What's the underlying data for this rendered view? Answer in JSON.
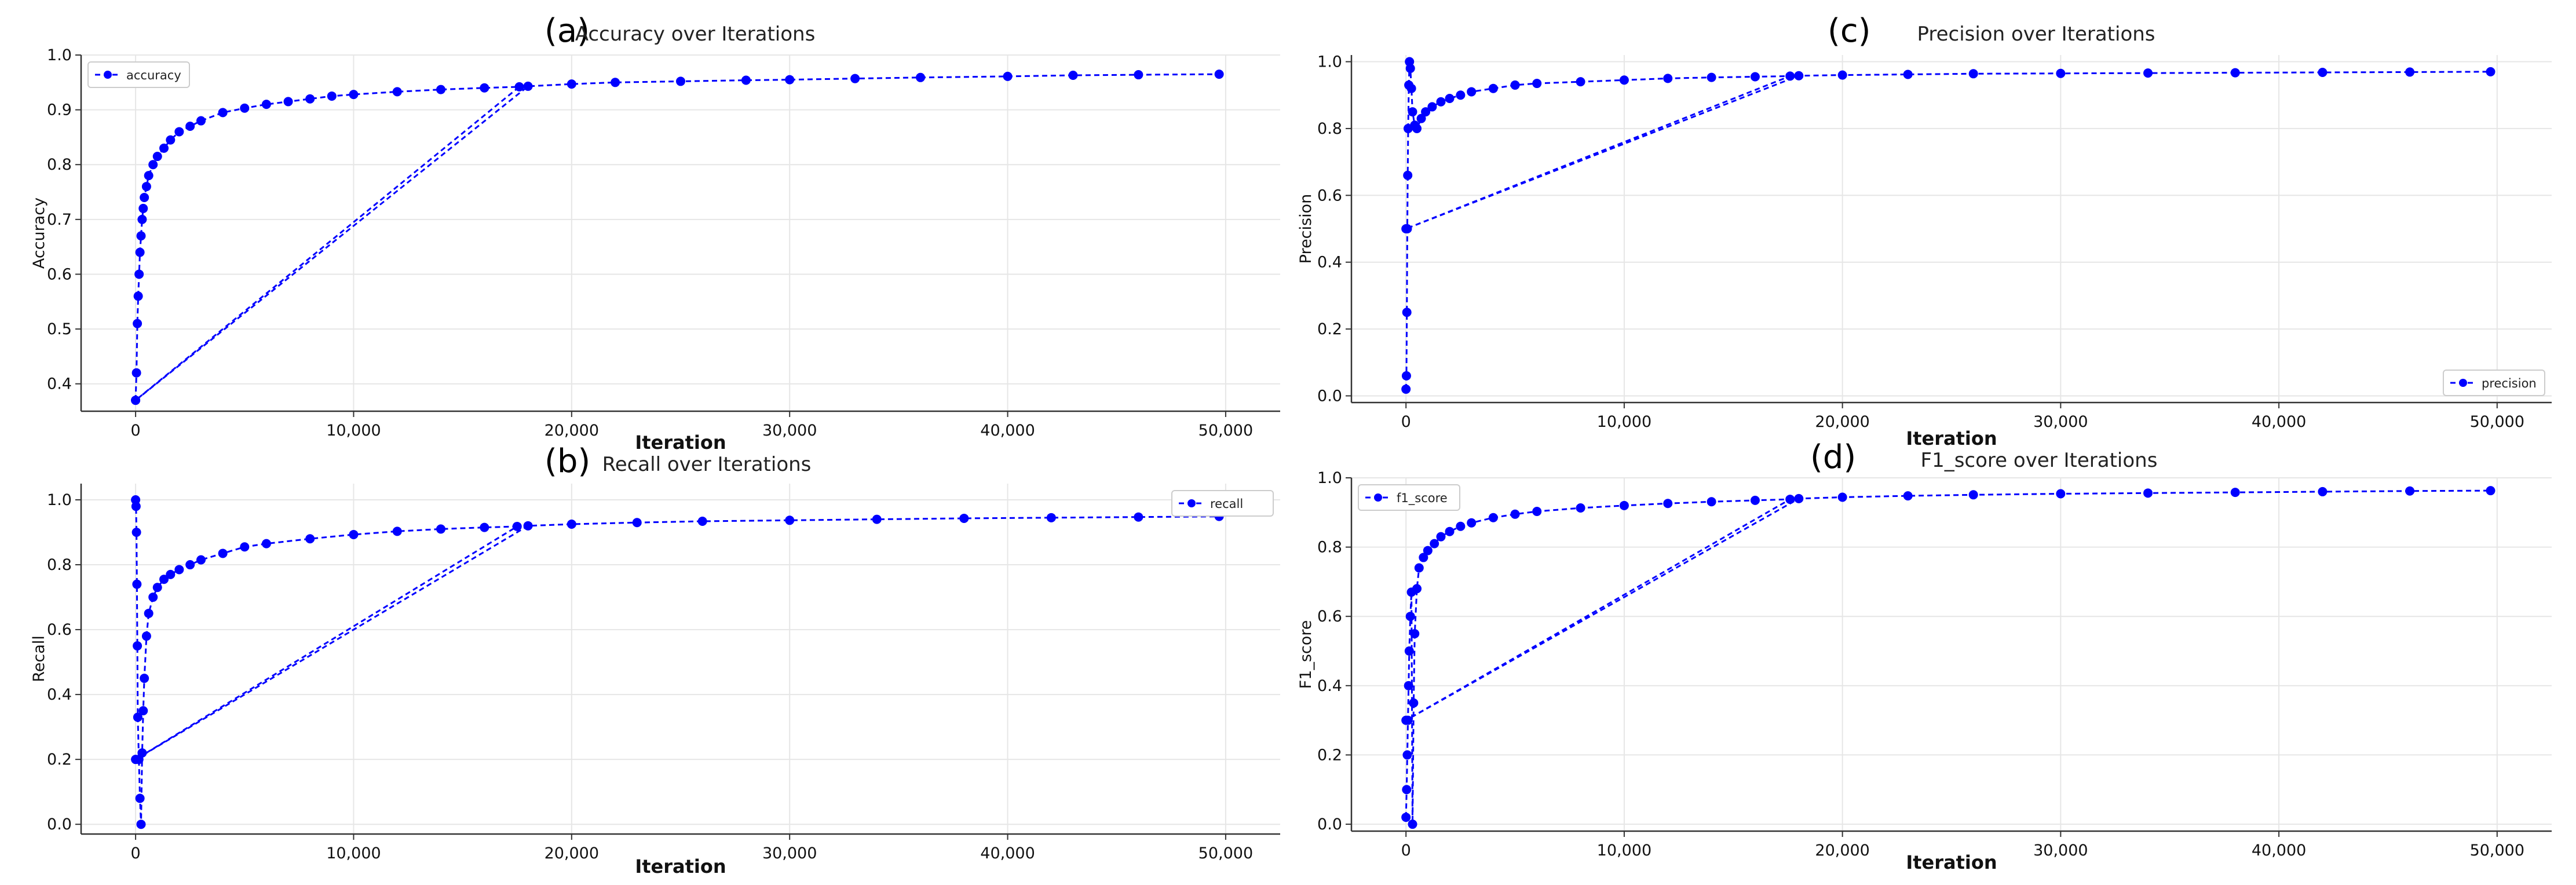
{
  "chart_data": [
    {
      "id": "accuracy",
      "type": "line",
      "panel_label": "(a)",
      "title": "Accuracy over Iterations",
      "xlabel": "Iteration",
      "ylabel": "Accuracy",
      "xlim": [
        -2500,
        52500
      ],
      "ylim": [
        0.35,
        1.0
      ],
      "xticks": [
        0,
        10000,
        20000,
        30000,
        40000,
        50000
      ],
      "xtick_labels": [
        "0",
        "10,000",
        "20,000",
        "30,000",
        "40,000",
        "50,000"
      ],
      "yticks": [
        0.4,
        0.5,
        0.6,
        0.7,
        0.8,
        0.9,
        1.0
      ],
      "ytick_labels": [
        "0.4",
        "0.5",
        "0.6",
        "0.7",
        "0.8",
        "0.9",
        "1.0"
      ],
      "grid": true,
      "legend_position": "upper-left",
      "series": [
        {
          "name": "accuracy",
          "color": "#0000ff",
          "line_style": "dashed",
          "marker": "circle",
          "x": [
            0,
            40,
            80,
            120,
            160,
            200,
            250,
            300,
            350,
            400,
            500,
            600,
            800,
            1000,
            1300,
            1600,
            2000,
            2500,
            3000,
            4000,
            5000,
            6000,
            7000,
            8000,
            9000,
            10000,
            12000,
            14000,
            16000,
            17600,
            0,
            18000,
            20000,
            22000,
            25000,
            28000,
            30000,
            33000,
            36000,
            40000,
            43000,
            46000,
            49700
          ],
          "y": [
            0.37,
            0.42,
            0.51,
            0.56,
            0.6,
            0.64,
            0.67,
            0.7,
            0.72,
            0.74,
            0.76,
            0.78,
            0.8,
            0.815,
            0.83,
            0.845,
            0.86,
            0.87,
            0.88,
            0.895,
            0.903,
            0.91,
            0.915,
            0.92,
            0.925,
            0.928,
            0.933,
            0.937,
            0.94,
            0.942,
            0.37,
            0.943,
            0.947,
            0.95,
            0.952,
            0.954,
            0.955,
            0.957,
            0.959,
            0.961,
            0.963,
            0.964,
            0.965
          ]
        }
      ]
    },
    {
      "id": "recall",
      "type": "line",
      "panel_label": "(b)",
      "title": "Recall over Iterations",
      "xlabel": "Iteration",
      "ylabel": "Recall",
      "xlim": [
        -2500,
        52500
      ],
      "ylim": [
        -0.03,
        1.05
      ],
      "xticks": [
        0,
        10000,
        20000,
        30000,
        40000,
        50000
      ],
      "xtick_labels": [
        "0",
        "10,000",
        "20,000",
        "30,000",
        "40,000",
        "50,000"
      ],
      "yticks": [
        0.0,
        0.2,
        0.4,
        0.6,
        0.8,
        1.0
      ],
      "ytick_labels": [
        "0.0",
        "0.2",
        "0.4",
        "0.6",
        "0.8",
        "1.0"
      ],
      "grid": true,
      "legend_position": "upper-right",
      "series": [
        {
          "name": "recall",
          "color": "#0000ff",
          "line_style": "dashed",
          "marker": "circle",
          "x": [
            0,
            20,
            40,
            60,
            80,
            100,
            150,
            200,
            250,
            300,
            350,
            400,
            500,
            600,
            800,
            1000,
            1300,
            1600,
            2000,
            2500,
            3000,
            4000,
            5000,
            6000,
            8000,
            10000,
            12000,
            14000,
            16000,
            17500,
            0,
            18000,
            20000,
            23000,
            26000,
            30000,
            34000,
            38000,
            42000,
            46000,
            49700
          ],
          "y": [
            1.0,
            0.98,
            0.9,
            0.74,
            0.55,
            0.33,
            0.2,
            0.08,
            0.0,
            0.22,
            0.35,
            0.45,
            0.58,
            0.65,
            0.7,
            0.73,
            0.755,
            0.77,
            0.785,
            0.8,
            0.815,
            0.835,
            0.855,
            0.865,
            0.88,
            0.893,
            0.903,
            0.91,
            0.915,
            0.918,
            0.2,
            0.92,
            0.925,
            0.93,
            0.934,
            0.937,
            0.94,
            0.943,
            0.945,
            0.947,
            0.949
          ]
        }
      ]
    },
    {
      "id": "precision",
      "type": "line",
      "panel_label": "(c)",
      "title": "Precision over Iterations",
      "xlabel": "Iteration",
      "ylabel": "Precision",
      "xlim": [
        -2500,
        52500
      ],
      "ylim": [
        -0.02,
        1.02
      ],
      "xticks": [
        0,
        10000,
        20000,
        30000,
        40000,
        50000
      ],
      "xtick_labels": [
        "0",
        "10,000",
        "20,000",
        "30,000",
        "40,000",
        "50,000"
      ],
      "yticks": [
        0.0,
        0.2,
        0.4,
        0.6,
        0.8,
        1.0
      ],
      "ytick_labels": [
        "0.0",
        "0.2",
        "0.4",
        "0.6",
        "0.8",
        "1.0"
      ],
      "grid": true,
      "legend_position": "lower-right",
      "series": [
        {
          "name": "precision",
          "color": "#0000ff",
          "line_style": "dashed",
          "marker": "circle",
          "x": [
            0,
            20,
            40,
            60,
            80,
            100,
            130,
            160,
            200,
            250,
            300,
            400,
            500,
            700,
            900,
            1200,
            1600,
            2000,
            2500,
            3000,
            4000,
            5000,
            6000,
            8000,
            10000,
            12000,
            14000,
            16000,
            17600,
            0,
            18000,
            20000,
            23000,
            26000,
            30000,
            34000,
            38000,
            42000,
            46000,
            49700
          ],
          "y": [
            0.02,
            0.06,
            0.25,
            0.5,
            0.66,
            0.8,
            0.93,
            1.0,
            0.98,
            0.92,
            0.85,
            0.81,
            0.8,
            0.83,
            0.85,
            0.865,
            0.88,
            0.89,
            0.9,
            0.91,
            0.92,
            0.93,
            0.935,
            0.94,
            0.945,
            0.95,
            0.953,
            0.955,
            0.957,
            0.5,
            0.958,
            0.96,
            0.962,
            0.964,
            0.965,
            0.966,
            0.967,
            0.968,
            0.969,
            0.97
          ]
        }
      ]
    },
    {
      "id": "f1_score",
      "type": "line",
      "panel_label": "(d)",
      "title": "F1_score over Iterations",
      "xlabel": "Iteration",
      "ylabel": "F1_score",
      "xlim": [
        -2500,
        52500
      ],
      "ylim": [
        -0.02,
        1.0
      ],
      "xticks": [
        0,
        10000,
        20000,
        30000,
        40000,
        50000
      ],
      "xtick_labels": [
        "0",
        "10,000",
        "20,000",
        "30,000",
        "40,000",
        "50,000"
      ],
      "yticks": [
        0.0,
        0.2,
        0.4,
        0.6,
        0.8,
        1.0
      ],
      "ytick_labels": [
        "0.0",
        "0.2",
        "0.4",
        "0.6",
        "0.8",
        "1.0"
      ],
      "grid": true,
      "legend_position": "upper-left",
      "series": [
        {
          "name": "f1_score",
          "color": "#0000ff",
          "line_style": "dashed",
          "marker": "circle",
          "x": [
            0,
            30,
            60,
            90,
            120,
            150,
            200,
            250,
            300,
            350,
            400,
            500,
            600,
            800,
            1000,
            1300,
            1600,
            2000,
            2500,
            3000,
            4000,
            5000,
            6000,
            8000,
            10000,
            12000,
            14000,
            16000,
            17600,
            0,
            18000,
            20000,
            23000,
            26000,
            30000,
            34000,
            38000,
            42000,
            46000,
            49700
          ],
          "y": [
            0.02,
            0.1,
            0.2,
            0.3,
            0.4,
            0.5,
            0.6,
            0.67,
            0.0,
            0.35,
            0.55,
            0.68,
            0.74,
            0.77,
            0.79,
            0.81,
            0.83,
            0.845,
            0.86,
            0.87,
            0.885,
            0.895,
            0.903,
            0.913,
            0.92,
            0.926,
            0.931,
            0.935,
            0.938,
            0.3,
            0.94,
            0.944,
            0.948,
            0.951,
            0.954,
            0.956,
            0.958,
            0.96,
            0.962,
            0.963
          ]
        }
      ]
    }
  ]
}
